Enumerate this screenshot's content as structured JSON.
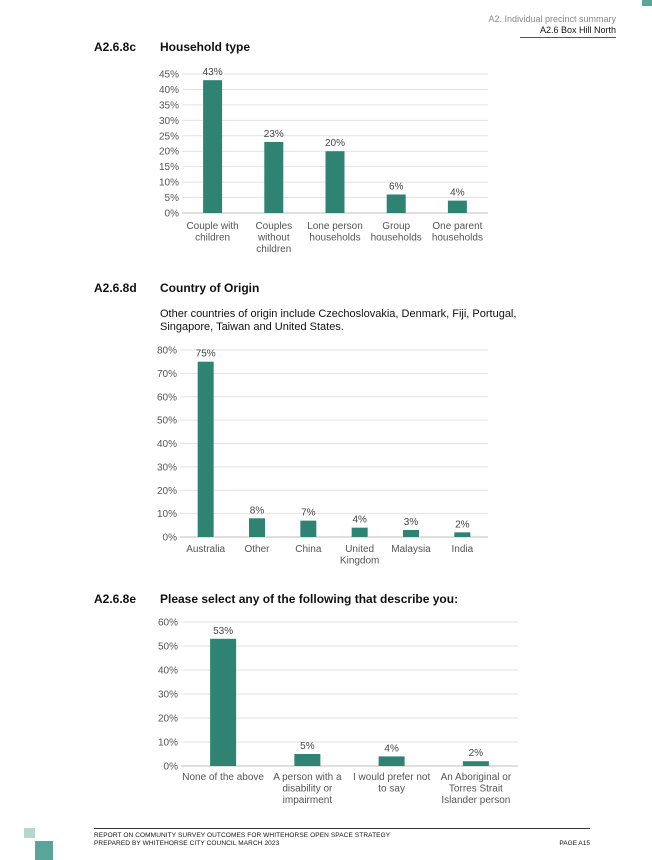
{
  "header": {
    "section": "A2. Individual precinct summary",
    "subsection": "A2.6 Box Hill North"
  },
  "sections": {
    "c": {
      "num": "A2.6.8c",
      "title": "Household type"
    },
    "d": {
      "num": "A2.6.8d",
      "title": "Country of Origin",
      "note": "Other countries of origin include Czechoslovakia, Denmark, Fiji, Portugal, Singapore, Taiwan and United States."
    },
    "e": {
      "num": "A2.6.8e",
      "title": "Please select any of the following that describe you:"
    }
  },
  "chart_data": [
    {
      "type": "bar",
      "title": "Household type",
      "categories": [
        [
          "Couple with",
          "children"
        ],
        [
          "Couples",
          "without",
          "children"
        ],
        [
          "Lone person",
          "households"
        ],
        [
          "Group",
          "households"
        ],
        [
          "One parent",
          "households"
        ]
      ],
      "values": [
        43,
        23,
        20,
        6,
        4
      ],
      "data_labels": [
        "43%",
        "23%",
        "20%",
        "6%",
        "4%"
      ],
      "yticks": [
        "0%",
        "5%",
        "10%",
        "15%",
        "20%",
        "25%",
        "30%",
        "35%",
        "40%",
        "45%"
      ],
      "ylim": [
        0,
        45
      ],
      "grid": true,
      "bar_color": "#2f8373"
    },
    {
      "type": "bar",
      "title": "Country of Origin",
      "categories": [
        [
          "Australia"
        ],
        [
          "Other"
        ],
        [
          "China"
        ],
        [
          "United",
          "Kingdom"
        ],
        [
          "Malaysia"
        ],
        [
          "India"
        ]
      ],
      "values": [
        75,
        8,
        7,
        4,
        3,
        2
      ],
      "data_labels": [
        "75%",
        "8%",
        "7%",
        "4%",
        "3%",
        "2%"
      ],
      "yticks": [
        "0%",
        "10%",
        "20%",
        "30%",
        "40%",
        "50%",
        "60%",
        "70%",
        "80%"
      ],
      "ylim": [
        0,
        80
      ],
      "grid": true,
      "bar_color": "#2f8373"
    },
    {
      "type": "bar",
      "title": "Please select any of the following that describe you:",
      "categories": [
        [
          "None of the above"
        ],
        [
          "A person with a",
          "disability or",
          "impairment"
        ],
        [
          "I would prefer not",
          "to say"
        ],
        [
          "An Aboriginal or",
          "Torres Strait",
          "Islander person"
        ]
      ],
      "values": [
        53,
        5,
        4,
        2
      ],
      "data_labels": [
        "53%",
        "5%",
        "4%",
        "2%"
      ],
      "yticks": [
        "0%",
        "10%",
        "20%",
        "30%",
        "40%",
        "50%",
        "60%"
      ],
      "ylim": [
        0,
        60
      ],
      "grid": true,
      "bar_color": "#2f8373"
    }
  ],
  "footer": {
    "line1": "REPORT ON COMMUNITY SURVEY OUTCOMES FOR WHITEHORSE OPEN SPACE STRATEGY",
    "line2": "PREPARED BY WHITEHORSE CITY COUNCIL MARCH 2023",
    "page": "PAGE A15"
  }
}
